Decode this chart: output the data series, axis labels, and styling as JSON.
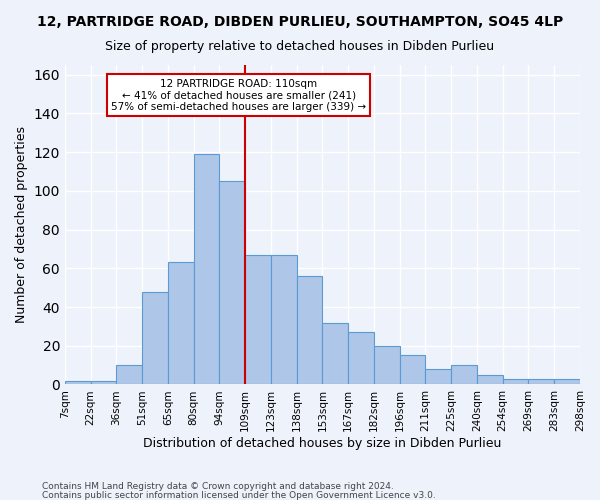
{
  "title1": "12, PARTRIDGE ROAD, DIBDEN PURLIEU, SOUTHAMPTON, SO45 4LP",
  "title2": "Size of property relative to detached houses in Dibden Purlieu",
  "xlabel": "Distribution of detached houses by size in Dibden Purlieu",
  "ylabel": "Number of detached properties",
  "annotation_line1": "12 PARTRIDGE ROAD: 110sqm",
  "annotation_line2": "← 41% of detached houses are smaller (241)",
  "annotation_line3": "57% of semi-detached houses are larger (339) →",
  "bar_color": "#aec6e8",
  "bar_edge_color": "#5b9bd5",
  "vline_color": "#cc0000",
  "annotation_box_color": "#cc0000",
  "background_color": "#eef2fa",
  "grid_color": "#ffffff",
  "tick_labels": [
    "7sqm",
    "22sqm",
    "36sqm",
    "51sqm",
    "65sqm",
    "80sqm",
    "94sqm",
    "109sqm",
    "123sqm",
    "138sqm",
    "153sqm",
    "167sqm",
    "182sqm",
    "196sqm",
    "211sqm",
    "225sqm",
    "240sqm",
    "254sqm",
    "269sqm",
    "283sqm",
    "298sqm"
  ],
  "bar_heights": [
    2,
    2,
    10,
    48,
    63,
    119,
    105,
    67,
    67,
    56,
    32,
    27,
    20,
    15,
    8,
    10,
    5,
    3,
    3,
    3
  ],
  "ylim": [
    0,
    165
  ],
  "yticks": [
    0,
    20,
    40,
    60,
    80,
    100,
    120,
    140,
    160
  ],
  "footer1": "Contains HM Land Registry data © Crown copyright and database right 2024.",
  "footer2": "Contains public sector information licensed under the Open Government Licence v3.0."
}
